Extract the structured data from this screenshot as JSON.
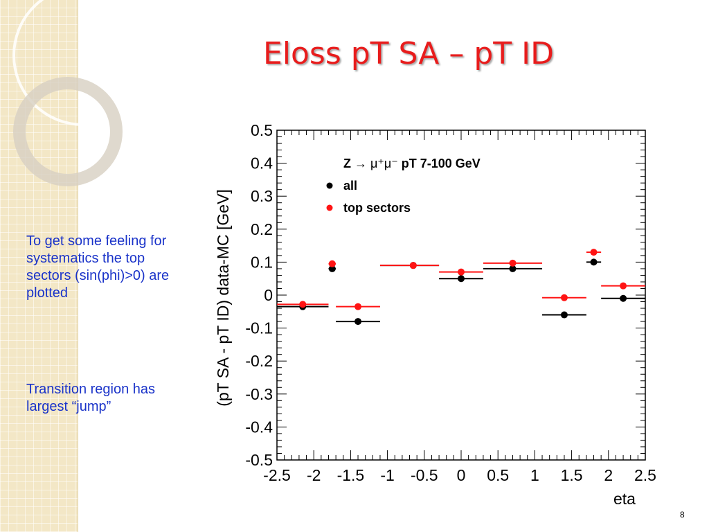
{
  "slide": {
    "title": "Eloss pT SA – pT ID",
    "page_number": "8",
    "notes": [
      "To get some feeling for systematics the top sectors (sin(phi)>0) are plotted",
      "Transition region has largest “jump”"
    ]
  },
  "colors": {
    "title": "#e81c1c",
    "notes": "#1a33c9",
    "series_all": "#000000",
    "series_top": "#ff1414"
  },
  "chart_data": {
    "type": "scatter",
    "xlabel": "eta",
    "ylabel": "(pT SA - pT ID) data-MC [GeV]",
    "xlim": [
      -2.5,
      2.5
    ],
    "ylim": [
      -0.5,
      0.5
    ],
    "x_ticks": [
      -2.5,
      -2,
      -1.5,
      -1,
      -0.5,
      0,
      0.5,
      1,
      1.5,
      2,
      2.5
    ],
    "x_tick_labels": [
      "-2.5",
      "-2",
      "-1.5",
      "-1",
      "-0.5",
      "0",
      "0.5",
      "1",
      "1.5",
      "2",
      "2.5"
    ],
    "y_ticks": [
      -0.5,
      -0.4,
      -0.3,
      -0.2,
      -0.1,
      0,
      0.1,
      0.2,
      0.3,
      0.4,
      0.5
    ],
    "y_tick_labels": [
      "-0.5",
      "-0.4",
      "-0.3",
      "-0.2",
      "-0.1",
      "0",
      "0.1",
      "0.2",
      "0.3",
      "0.4",
      "0.5"
    ],
    "grid": false,
    "legend": {
      "position": "top-left inside",
      "title_prefix": "Z ",
      "title_arrow": "→",
      "title_particles": " μ⁺μ⁻",
      "title_suffix": "  pT 7-100 GeV",
      "entries": [
        "all",
        "top sectors"
      ]
    },
    "series": [
      {
        "name": "all",
        "color": "#000000",
        "points": [
          {
            "x": -2.15,
            "x_low": -2.5,
            "x_high": -1.8,
            "y": -0.035
          },
          {
            "x": -1.75,
            "x_low": -1.8,
            "x_high": -1.7,
            "y": 0.08
          },
          {
            "x": -1.4,
            "x_low": -1.7,
            "x_high": -1.1,
            "y": -0.08
          },
          {
            "x": -0.65,
            "x_low": -1.1,
            "x_high": -0.3,
            "y": 0.09
          },
          {
            "x": 0.0,
            "x_low": -0.3,
            "x_high": 0.3,
            "y": 0.05
          },
          {
            "x": 0.7,
            "x_low": 0.3,
            "x_high": 1.1,
            "y": 0.08
          },
          {
            "x": 1.4,
            "x_low": 1.1,
            "x_high": 1.7,
            "y": -0.06
          },
          {
            "x": 1.8,
            "x_low": 1.7,
            "x_high": 1.9,
            "y": 0.1
          },
          {
            "x": 2.2,
            "x_low": 1.9,
            "x_high": 2.5,
            "y": -0.01
          }
        ]
      },
      {
        "name": "top sectors",
        "color": "#ff1414",
        "points": [
          {
            "x": -2.15,
            "x_low": -2.5,
            "x_high": -1.8,
            "y": -0.028
          },
          {
            "x": -1.75,
            "x_low": -1.8,
            "x_high": -1.7,
            "y": 0.095
          },
          {
            "x": -1.4,
            "x_low": -1.7,
            "x_high": -1.1,
            "y": -0.035
          },
          {
            "x": -0.65,
            "x_low": -1.1,
            "x_high": -0.3,
            "y": 0.09
          },
          {
            "x": 0.0,
            "x_low": -0.3,
            "x_high": 0.3,
            "y": 0.07
          },
          {
            "x": 0.7,
            "x_low": 0.3,
            "x_high": 1.1,
            "y": 0.097
          },
          {
            "x": 1.4,
            "x_low": 1.1,
            "x_high": 1.7,
            "y": -0.008
          },
          {
            "x": 1.8,
            "x_low": 1.7,
            "x_high": 1.9,
            "y": 0.13
          },
          {
            "x": 2.2,
            "x_low": 1.9,
            "x_high": 2.5,
            "y": 0.028
          }
        ]
      }
    ]
  }
}
